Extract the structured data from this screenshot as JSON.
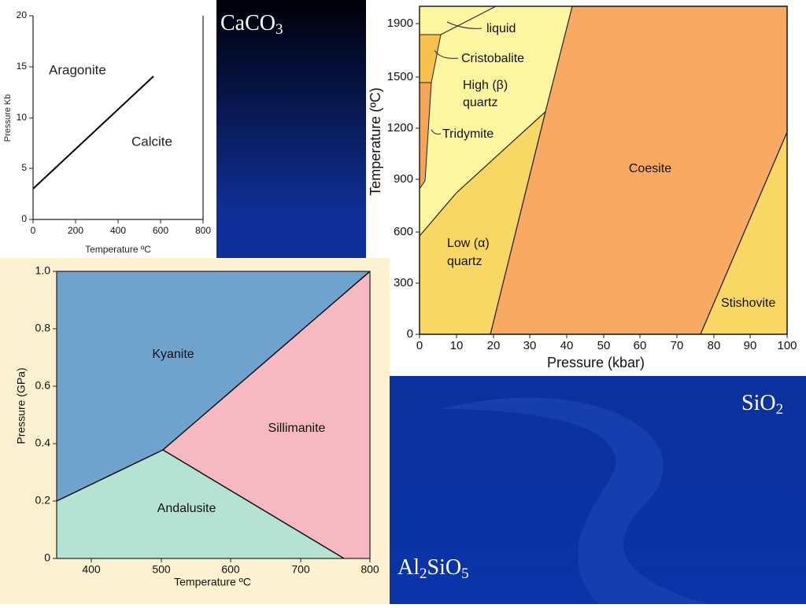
{
  "caco3": {
    "title": [
      "CaCO",
      "3"
    ],
    "y_axis_label": "Pressure Kb",
    "x_axis_label": "Temperature ºC",
    "yticks": [
      "20",
      "15",
      "10",
      "5",
      "0"
    ],
    "xticks": [
      "0",
      "200",
      "400",
      "600",
      "800"
    ],
    "regions": [
      "Aragonite",
      "Calcite"
    ]
  },
  "sio2": {
    "title": [
      "SiO",
      "2"
    ],
    "y_axis_label": "Temperature (ºC)",
    "x_axis_label": "Pressure (kbar)",
    "yticks": [
      "1900",
      "1500",
      "1200",
      "900",
      "600",
      "300",
      "0"
    ],
    "xticks": [
      "0",
      "10",
      "20",
      "30",
      "40",
      "50",
      "60",
      "70",
      "80",
      "90",
      "100"
    ],
    "regions": [
      "liquid",
      "Cristobalite",
      "High (β)",
      "quartz",
      "Tridymite",
      "Coesite",
      "Low (α)",
      "quartz",
      "Stishovite"
    ]
  },
  "al2sio5": {
    "title": [
      "Al",
      "2",
      "SiO",
      "5"
    ],
    "y_axis_label": "Pressure (GPa)",
    "x_axis_label": "Temperature ºC",
    "yticks": [
      "1.0",
      "0.8",
      "0.6",
      "0.4",
      "0.2",
      "0"
    ],
    "xticks": [
      "400",
      "500",
      "600",
      "700",
      "800"
    ],
    "regions": [
      "Kyanite",
      "Sillimanite",
      "Andalusite"
    ]
  }
}
